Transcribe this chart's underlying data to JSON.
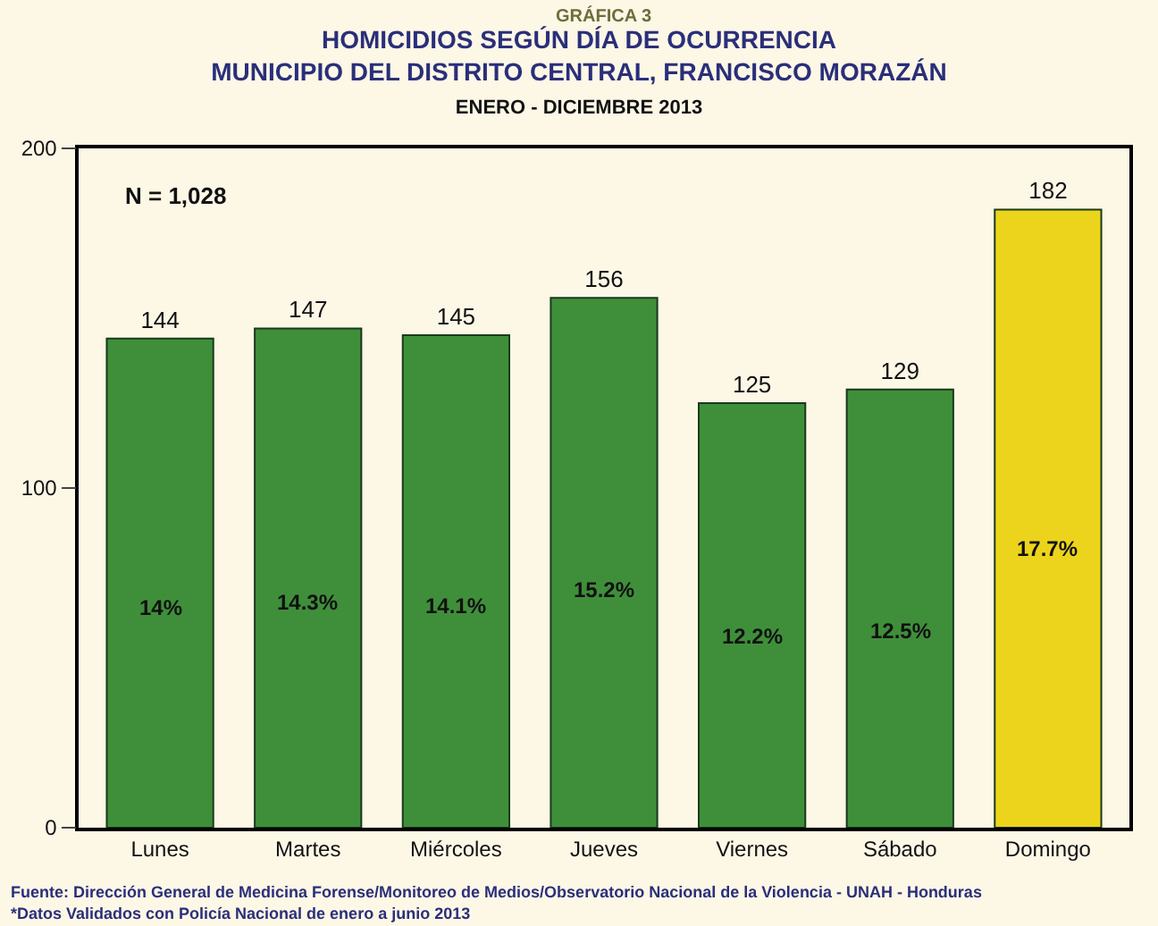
{
  "chart_data": {
    "type": "bar",
    "title": "HOMICIDIOS SEGÚN DÍA DE OCURRENCIA\nMUNICIPIO DEL DISTRITO CENTRAL, FRANCISCO MORAZÁN",
    "subtitle": "ENERO - DICIEMBRE 2013",
    "categories": [
      "Lunes",
      "Martes",
      "Miércoles",
      "Jueves",
      "Viernes",
      "Sábado",
      "Domingo"
    ],
    "values": [
      144,
      147,
      145,
      156,
      125,
      129,
      182
    ],
    "colors": [
      "#3f8f3a",
      "#3f8f3a",
      "#3f8f3a",
      "#3f8f3a",
      "#3f8f3a",
      "#3f8f3a",
      "#ecd41c"
    ],
    "data_labels": true,
    "ylim": [
      0,
      200
    ],
    "yticks": [
      0,
      100,
      200
    ],
    "grid": false,
    "annotations": [
      "GRÁFICA 3",
      "N = 1,028",
      "Fuente: Dirección General de Medicina Forense/Monitoreo de Medios/Observatorio Nacional de la Violencia - UNAH - Honduras",
      "*Datos Validados con Policía Nacional de enero a junio 2013",
      "14%",
      "14.3%",
      "14.1%",
      "15.2%",
      "12.2%",
      "12.5%",
      "17.7%"
    ]
  }
}
